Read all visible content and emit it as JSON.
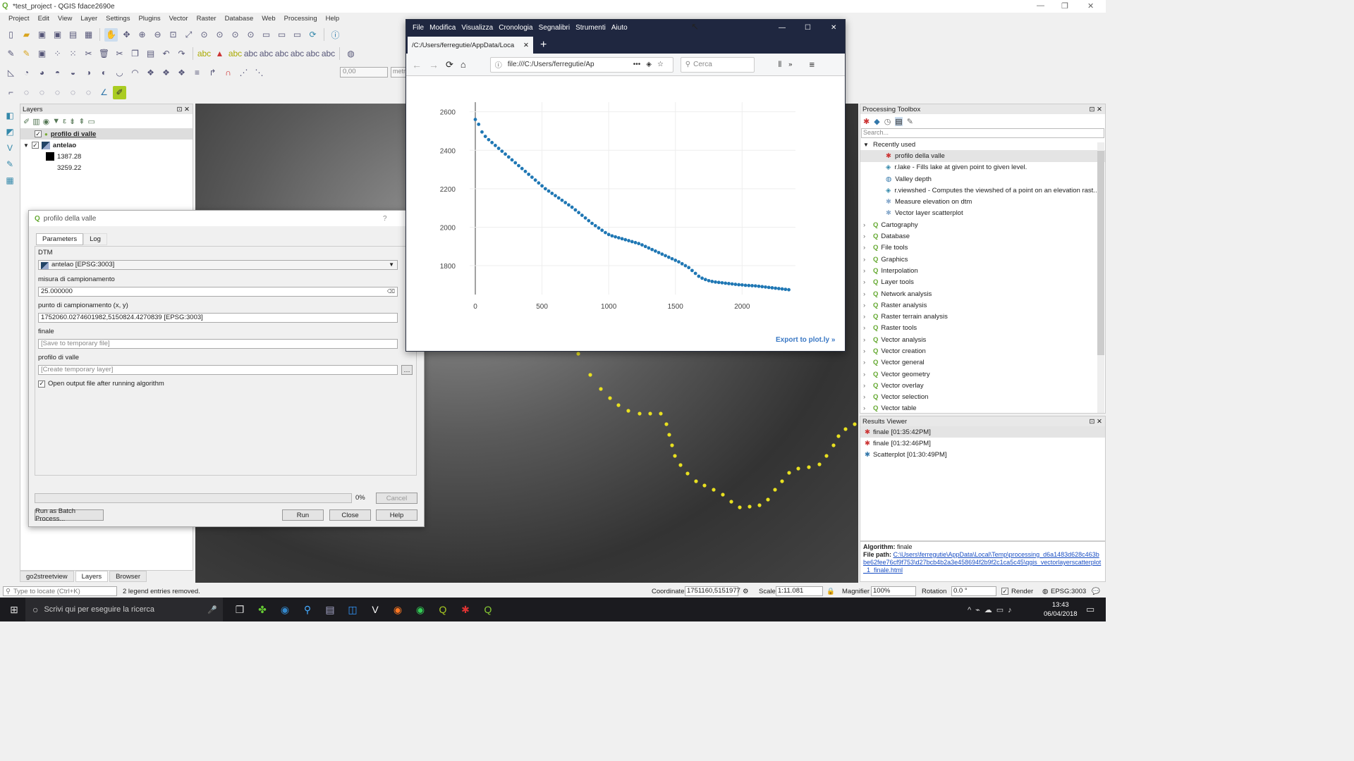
{
  "window": {
    "title": "*test_project - QGIS fdace2690e"
  },
  "menu": [
    "Project",
    "Edit",
    "View",
    "Layer",
    "Settings",
    "Plugins",
    "Vector",
    "Raster",
    "Database",
    "Web",
    "Processing",
    "Help"
  ],
  "toolbar": {
    "coord_value": "0,00",
    "unit_value": "metr"
  },
  "layers_panel": {
    "title": "Layers",
    "items": [
      {
        "name": "profilo di valle"
      },
      {
        "name": "antelao"
      }
    ],
    "legend_low": "1387.28",
    "legend_high": "3259.22",
    "tabs": [
      "go2streetview",
      "Layers",
      "Browser"
    ]
  },
  "dialog": {
    "title": "profilo della valle",
    "help_mark": "?",
    "tabs": [
      "Parameters",
      "Log"
    ],
    "dtm_label": "DTM",
    "dtm_value": "antelao [EPSG:3003]",
    "campionamento_label": "misura di campionamento",
    "campionamento_value": "25.000000",
    "punto_label": "punto di campionamento (x, y)",
    "punto_value": "1752060.0274601982,5150824.4270839 [EPSG:3003]",
    "finale_label": "finale",
    "finale_placeholder": "[Save to temporary file]",
    "profilo_label": "profilo di valle",
    "profilo_placeholder": "[Create temporary layer]",
    "open_output_label": "Open output file after running algorithm",
    "progress_text": "0%",
    "progress_fraction": 0,
    "cancel": "Cancel",
    "batch": "Run as Batch Process...",
    "run": "Run",
    "close": "Close",
    "help": "Help"
  },
  "browser": {
    "menu": [
      "File",
      "Modifica",
      "Visualizza",
      "Cronologia",
      "Segnalibri",
      "Strumenti",
      "Aiuto"
    ],
    "tab_title": "/C:/Users/ferregutie/AppData/Loca",
    "url": "file:///C:/Users/ferregutie/Ap",
    "search_placeholder": "Cerca",
    "export_link": "Export to plot.ly »"
  },
  "chart_data": {
    "type": "scatter",
    "title": "",
    "xlabel": "",
    "ylabel": "",
    "xlim": [
      0,
      2400
    ],
    "ylim": [
      1650,
      2650
    ],
    "xticks": [
      0,
      500,
      1000,
      1500,
      2000
    ],
    "yticks": [
      1800,
      2000,
      2200,
      2400,
      2600
    ],
    "grid": true,
    "color": "#1f77b4",
    "x": [
      0,
      25,
      50,
      75,
      100,
      125,
      150,
      175,
      200,
      225,
      250,
      275,
      300,
      325,
      350,
      375,
      400,
      425,
      450,
      475,
      500,
      525,
      550,
      575,
      600,
      625,
      650,
      675,
      700,
      725,
      750,
      775,
      800,
      825,
      850,
      875,
      900,
      925,
      950,
      975,
      1000,
      1025,
      1050,
      1075,
      1100,
      1125,
      1150,
      1175,
      1200,
      1225,
      1250,
      1275,
      1300,
      1325,
      1350,
      1375,
      1400,
      1425,
      1450,
      1475,
      1500,
      1525,
      1550,
      1575,
      1600,
      1625,
      1650,
      1675,
      1700,
      1725,
      1750,
      1775,
      1800,
      1825,
      1850,
      1875,
      1900,
      1925,
      1950,
      1975,
      2000,
      2025,
      2050,
      2075,
      2100,
      2125,
      2150,
      2175,
      2200,
      2225,
      2250,
      2275,
      2300,
      2325,
      2350
    ],
    "y": [
      2560,
      2535,
      2495,
      2472,
      2455,
      2440,
      2425,
      2410,
      2395,
      2380,
      2365,
      2350,
      2335,
      2320,
      2305,
      2290,
      2275,
      2260,
      2245,
      2230,
      2215,
      2200,
      2188,
      2176,
      2164,
      2152,
      2140,
      2128,
      2116,
      2104,
      2090,
      2076,
      2062,
      2048,
      2034,
      2020,
      2008,
      1996,
      1984,
      1972,
      1962,
      1955,
      1950,
      1945,
      1940,
      1935,
      1930,
      1925,
      1920,
      1915,
      1908,
      1900,
      1892,
      1884,
      1876,
      1868,
      1860,
      1852,
      1844,
      1836,
      1828,
      1820,
      1810,
      1800,
      1790,
      1775,
      1760,
      1745,
      1735,
      1728,
      1722,
      1718,
      1715,
      1713,
      1711,
      1709,
      1707,
      1705,
      1703,
      1701,
      1700,
      1698,
      1697,
      1696,
      1695,
      1693,
      1691,
      1689,
      1687,
      1685,
      1683,
      1681,
      1679,
      1677,
      1675
    ]
  },
  "processing_toolbox": {
    "title": "Processing Toolbox",
    "search_placeholder": "Search...",
    "recent_label": "Recently used",
    "recent": [
      "profilo della valle",
      "r.lake - Fills lake at given point to given level.",
      "Valley depth",
      "r.viewshed - Computes the viewshed of a point on an elevation rast...",
      "Measure elevation on dtm",
      "Vector layer scatterplot"
    ],
    "groups": [
      "Cartography",
      "Database",
      "File tools",
      "Graphics",
      "Interpolation",
      "Layer tools",
      "Network analysis",
      "Raster analysis",
      "Raster terrain analysis",
      "Raster tools",
      "Vector analysis",
      "Vector creation",
      "Vector general",
      "Vector geometry",
      "Vector overlay",
      "Vector selection",
      "Vector table"
    ]
  },
  "results_viewer": {
    "title": "Results Viewer",
    "items": [
      "finale [01:35:42PM]",
      "finale [01:32:46PM]",
      "Scatterplot [01:30:49PM]"
    ],
    "algorithm_label": "Algorithm:",
    "algorithm_value": "finale",
    "filepath_label": "File path:",
    "filepath_value": "C:\\Users\\ferregutie\\AppData\\Local\\Temp\\processing_d6a1483d628c463bbe62fee76cf9f753\\d27bcb4b2a3e458694f2b9f2c1ca5c45\\qgis_vectorlayerscatterplot_1_finale.html"
  },
  "status_bar": {
    "locate_placeholder": "Type to locate (Ctrl+K)",
    "message": "2 legend entries removed.",
    "coord_label": "Coordinate",
    "coord_value": "1751160,5151977",
    "scale_label": "Scale",
    "scale_value": "1:11.081",
    "magnifier_label": "Magnifier",
    "magnifier_value": "100%",
    "rotation_label": "Rotation",
    "rotation_value": "0.0 °",
    "render_label": "Render",
    "crs": "EPSG:3003"
  },
  "taskbar": {
    "search_placeholder": "Scrivi qui per eseguire la ricerca",
    "time": "13:43",
    "date": "06/04/2018"
  }
}
